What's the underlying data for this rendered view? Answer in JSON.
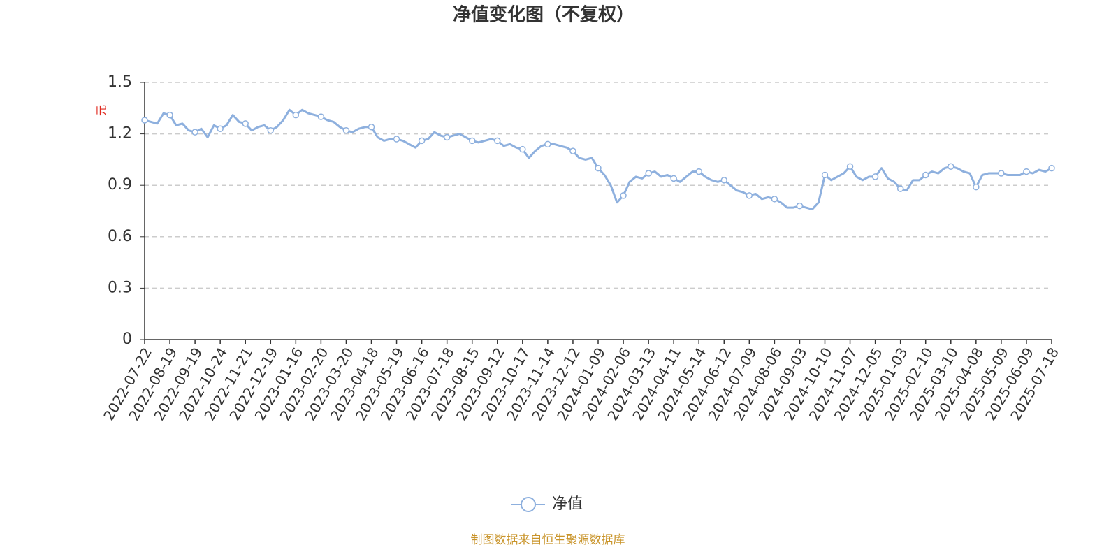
{
  "chart_data": {
    "type": "line",
    "title": "净值变化图（不复权）",
    "y_label": "元",
    "source": "制图数据来自恒生聚源数据库",
    "categories": [
      "2022-07-22",
      null,
      null,
      null,
      "2022-08-19",
      null,
      null,
      null,
      "2022-09-19",
      null,
      null,
      null,
      "2022-10-24",
      null,
      null,
      null,
      "2022-11-21",
      null,
      null,
      null,
      "2022-12-19",
      null,
      null,
      null,
      "2023-01-16",
      null,
      null,
      null,
      "2023-02-20",
      null,
      null,
      null,
      "2023-03-20",
      null,
      null,
      null,
      "2023-04-18",
      null,
      null,
      null,
      "2023-05-19",
      null,
      null,
      null,
      "2023-06-16",
      null,
      null,
      null,
      "2023-07-18",
      null,
      null,
      null,
      "2023-08-15",
      null,
      null,
      null,
      "2023-09-12",
      null,
      null,
      null,
      "2023-10-17",
      null,
      null,
      null,
      "2023-11-14",
      null,
      null,
      null,
      "2023-12-12",
      null,
      null,
      null,
      "2024-01-09",
      null,
      null,
      null,
      "2024-02-06",
      null,
      null,
      null,
      "2024-03-13",
      null,
      null,
      null,
      "2024-04-11",
      null,
      null,
      null,
      "2024-05-14",
      null,
      null,
      null,
      "2024-06-12",
      null,
      null,
      null,
      "2024-07-09",
      null,
      null,
      null,
      "2024-08-06",
      null,
      null,
      null,
      "2024-09-03",
      null,
      null,
      null,
      "2024-10-10",
      null,
      null,
      null,
      "2024-11-07",
      null,
      null,
      null,
      "2024-12-05",
      null,
      null,
      null,
      "2025-01-03",
      null,
      null,
      null,
      "2025-02-10",
      null,
      null,
      null,
      "2025-03-10",
      null,
      null,
      null,
      "2025-04-08",
      null,
      null,
      null,
      "2025-05-09",
      null,
      null,
      null,
      "2025-06-09",
      null,
      null,
      null,
      "2025-07-18"
    ],
    "series": [
      {
        "name": "净值",
        "color": "#8eb0de",
        "values": [
          1.28,
          1.27,
          1.26,
          1.32,
          1.31,
          1.25,
          1.26,
          1.22,
          1.21,
          1.23,
          1.18,
          1.25,
          1.23,
          1.25,
          1.31,
          1.27,
          1.26,
          1.22,
          1.24,
          1.25,
          1.22,
          1.24,
          1.28,
          1.34,
          1.31,
          1.34,
          1.32,
          1.31,
          1.3,
          1.28,
          1.27,
          1.24,
          1.22,
          1.21,
          1.23,
          1.24,
          1.24,
          1.18,
          1.16,
          1.17,
          1.17,
          1.16,
          1.14,
          1.12,
          1.16,
          1.17,
          1.21,
          1.19,
          1.18,
          1.19,
          1.2,
          1.18,
          1.16,
          1.15,
          1.16,
          1.17,
          1.16,
          1.13,
          1.14,
          1.12,
          1.11,
          1.06,
          1.1,
          1.13,
          1.14,
          1.14,
          1.13,
          1.12,
          1.1,
          1.06,
          1.05,
          1.06,
          1.0,
          0.96,
          0.9,
          0.8,
          0.84,
          0.92,
          0.95,
          0.94,
          0.97,
          0.98,
          0.95,
          0.96,
          0.94,
          0.92,
          0.95,
          0.98,
          0.98,
          0.95,
          0.93,
          0.92,
          0.93,
          0.9,
          0.87,
          0.86,
          0.84,
          0.85,
          0.82,
          0.83,
          0.82,
          0.8,
          0.77,
          0.77,
          0.78,
          0.77,
          0.76,
          0.8,
          0.96,
          0.93,
          0.95,
          0.97,
          1.01,
          0.95,
          0.93,
          0.95,
          0.95,
          1.0,
          0.94,
          0.92,
          0.88,
          0.87,
          0.93,
          0.93,
          0.96,
          0.98,
          0.97,
          1.0,
          1.01,
          1.0,
          0.98,
          0.97,
          0.89,
          0.96,
          0.97,
          0.97,
          0.97,
          0.96,
          0.96,
          0.96,
          0.98,
          0.97,
          0.99,
          0.98,
          1.0
        ]
      }
    ],
    "ylim": [
      0,
      1.5
    ],
    "yticks": [
      0,
      0.3,
      0.6,
      0.9,
      1.2,
      1.5
    ],
    "grid": true,
    "legend": "bottom"
  }
}
